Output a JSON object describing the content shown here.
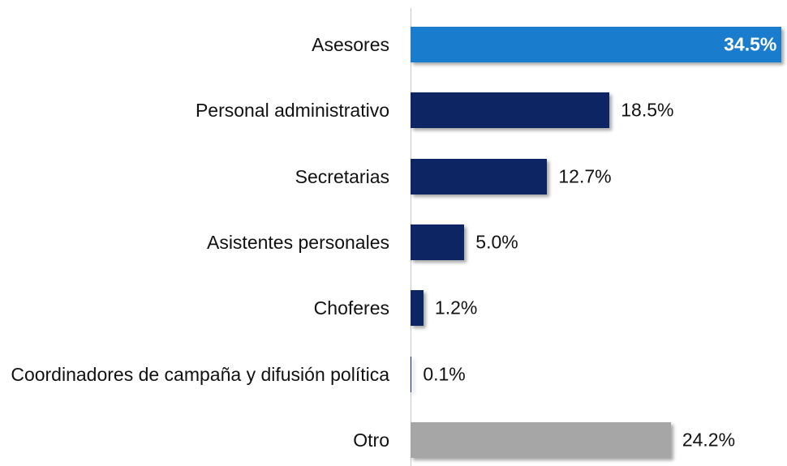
{
  "chart_data": {
    "type": "bar",
    "orientation": "horizontal",
    "categories": [
      "Asesores",
      "Personal administrativo",
      "Secretarias",
      "Asistentes personales",
      "Choferes",
      "Coordinadores de campaña y difusión política",
      "Otro"
    ],
    "values": [
      34.5,
      18.5,
      12.7,
      5.0,
      1.2,
      0.1,
      24.2
    ],
    "value_labels": [
      "34.5%",
      "18.5%",
      "12.7%",
      "5.0%",
      "1.2%",
      "0.1%",
      "24.2%"
    ],
    "colors": [
      "#1a7ccc",
      "#0e2563",
      "#0e2563",
      "#0e2563",
      "#0e2563",
      "#0e2563",
      "#a6a6a6"
    ],
    "xlim": [
      0,
      35
    ]
  }
}
